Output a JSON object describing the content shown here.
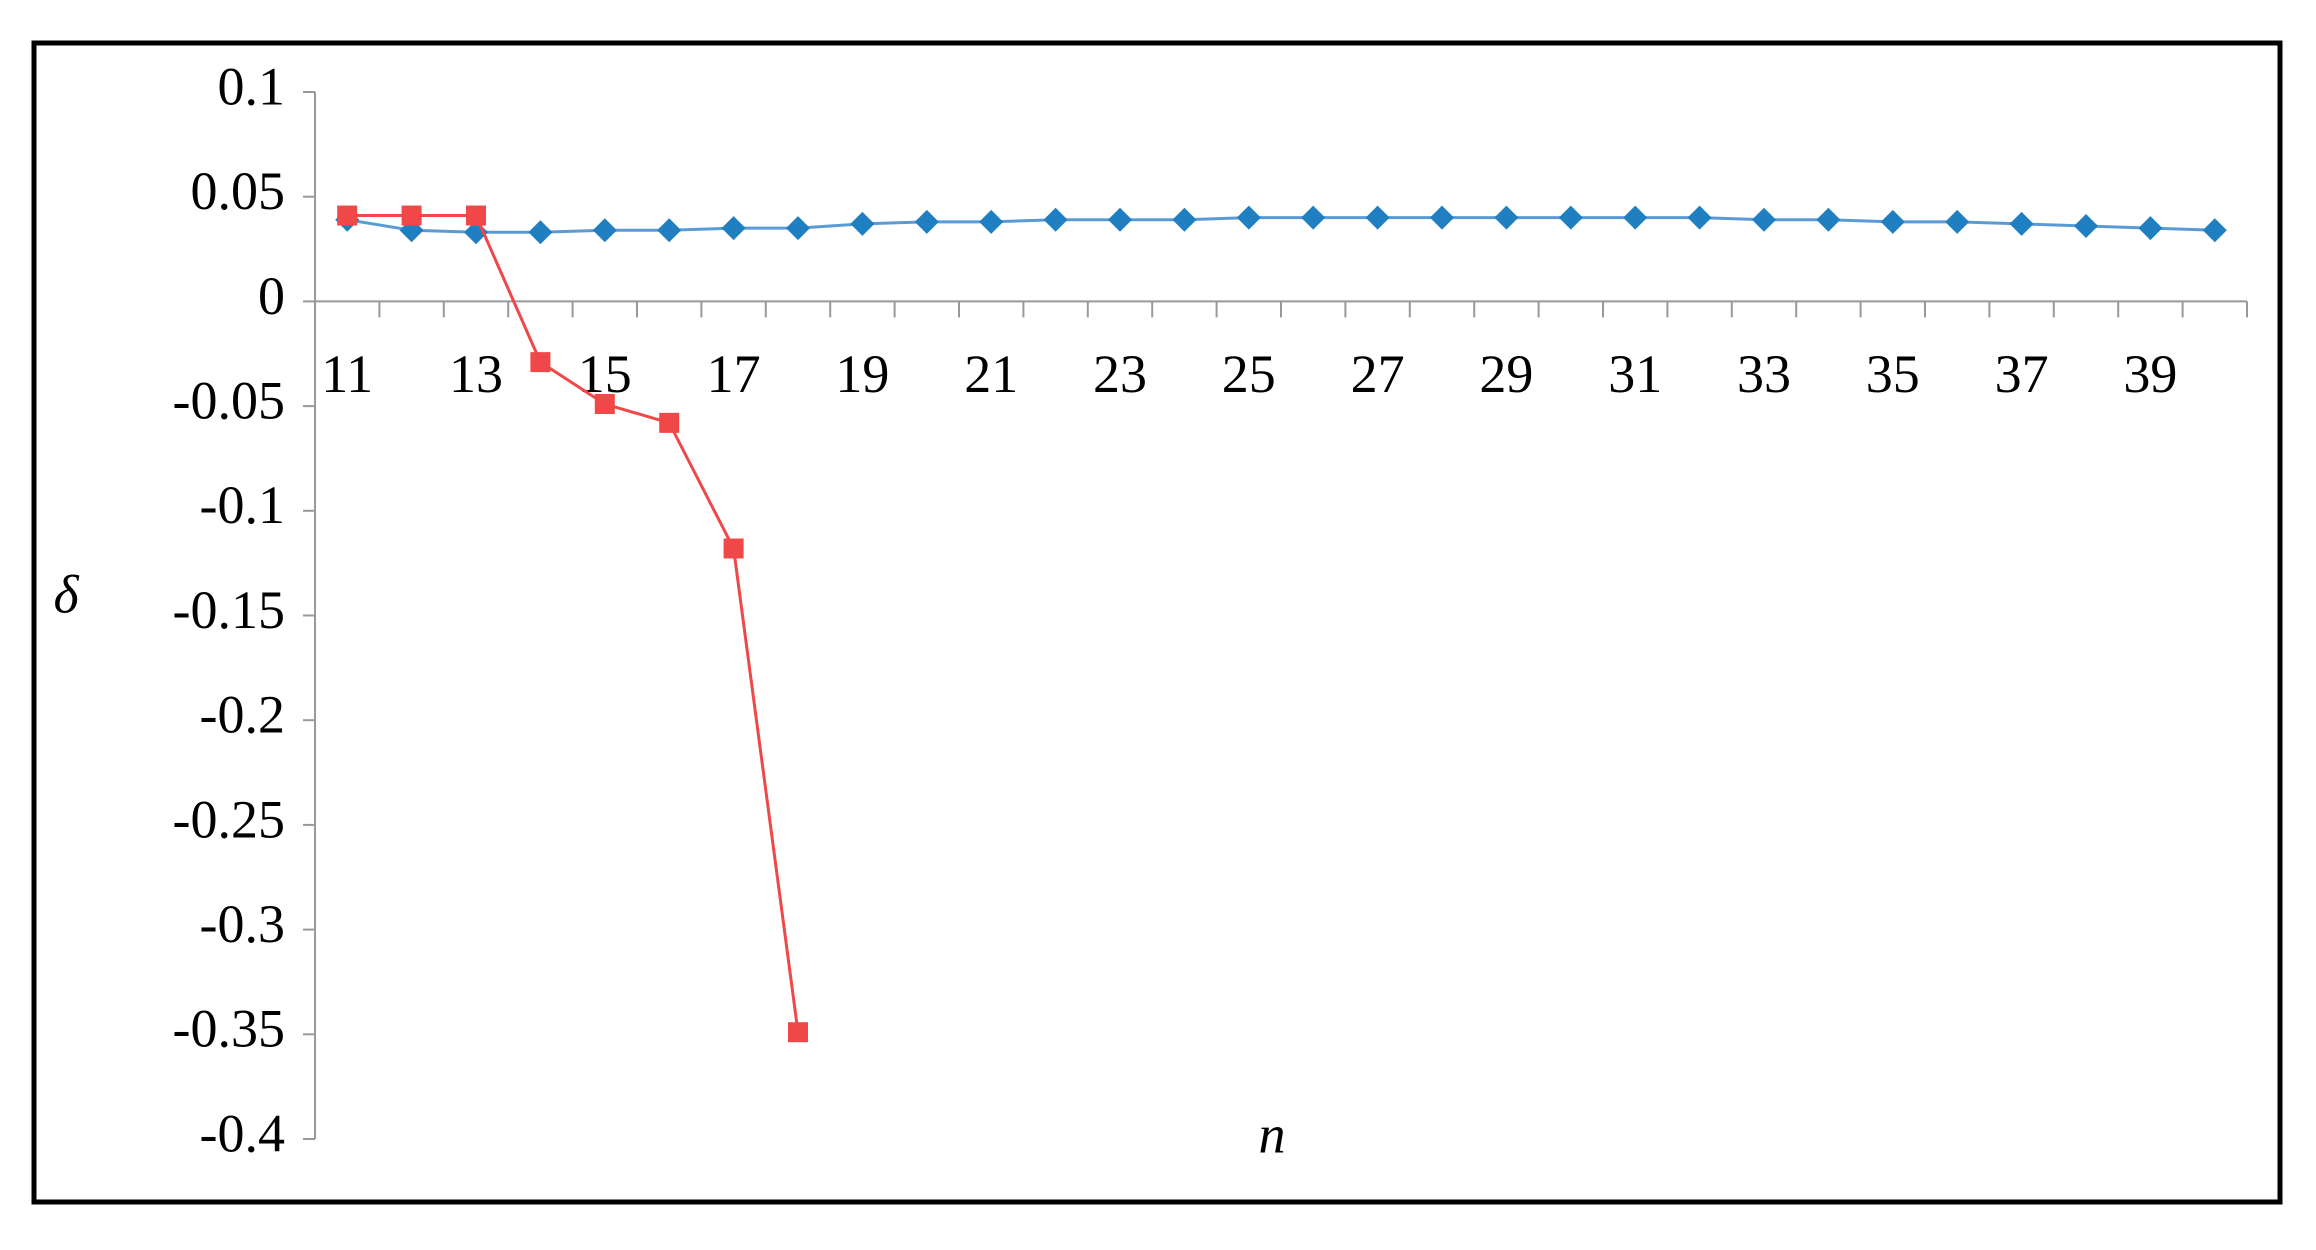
{
  "chart_data": {
    "type": "line",
    "x_label": "n",
    "y_label": "δ",
    "categories": [
      "11",
      null,
      "13",
      null,
      "15",
      null,
      "17",
      null,
      "19",
      null,
      "21",
      null,
      "23",
      null,
      "25",
      null,
      "27",
      null,
      "29",
      null,
      "31",
      null,
      "33",
      null,
      "35",
      null,
      "37",
      null,
      "39",
      null
    ],
    "series": [
      {
        "color": "#1f7fc0",
        "line_color": "#5b9bd5",
        "marker": "diamond",
        "values": [
          0.039,
          0.034,
          0.033,
          0.033,
          0.034,
          0.034,
          0.035,
          0.035,
          0.037,
          0.038,
          0.038,
          0.039,
          0.039,
          0.039,
          0.04,
          0.04,
          0.04,
          0.04,
          0.04,
          0.04,
          0.04,
          0.04,
          0.039,
          0.039,
          0.038,
          0.038,
          0.037,
          0.036,
          0.035,
          0.034
        ]
      },
      {
        "color": "#f04848",
        "line_color": "#f04848",
        "marker": "square",
        "values": [
          0.041,
          0.041,
          0.041,
          -0.029,
          -0.049,
          -0.058,
          -0.118,
          -0.349,
          null,
          null,
          null,
          null,
          null,
          null,
          null,
          null,
          null,
          null,
          null,
          null,
          null,
          null,
          null,
          null,
          null,
          null,
          null,
          null,
          null,
          null
        ]
      }
    ],
    "ylim": [
      -0.4,
      0.1
    ],
    "yticks": [
      0.1,
      0.05,
      0,
      -0.05,
      -0.1,
      -0.15,
      -0.2,
      -0.25,
      -0.3,
      -0.35,
      -0.4
    ]
  }
}
